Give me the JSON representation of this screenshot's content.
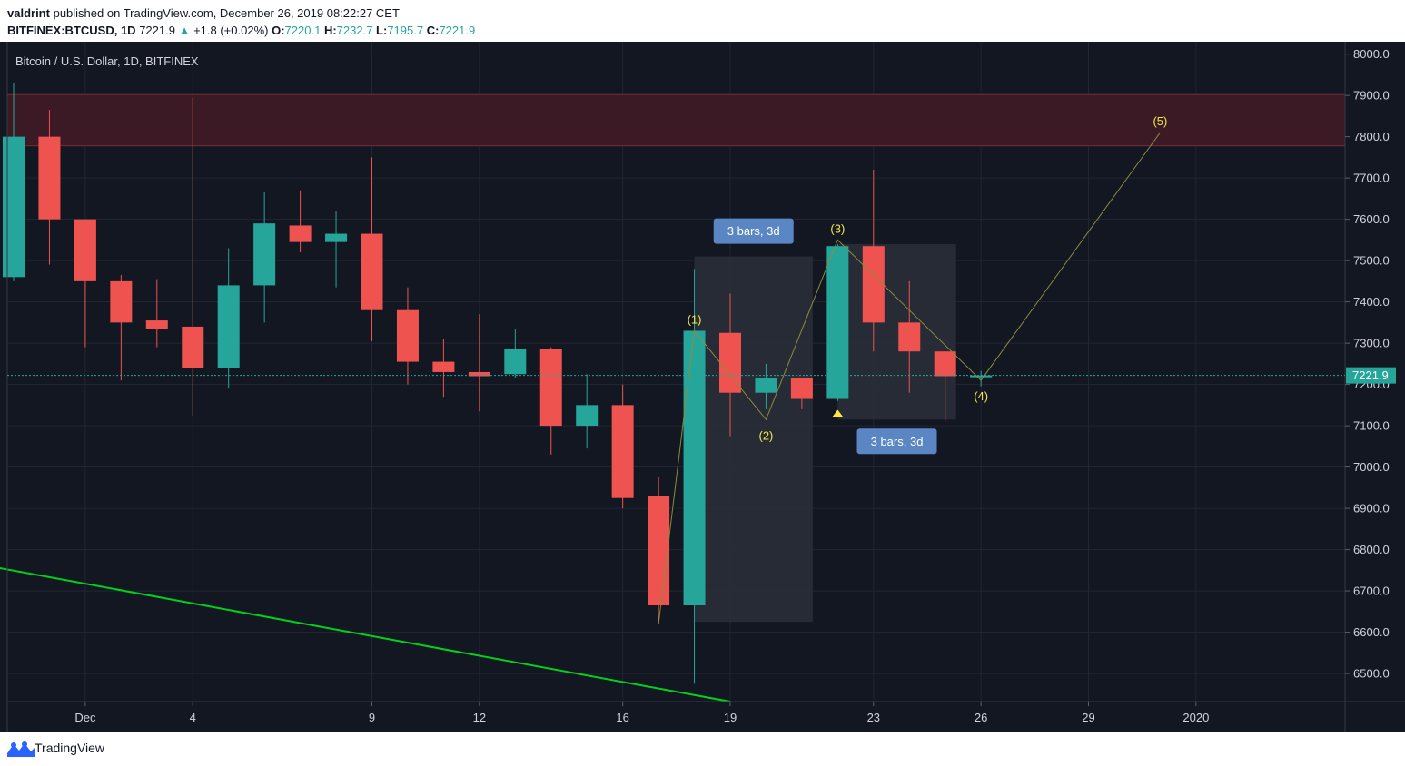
{
  "header": {
    "author": "valdrint",
    "published": "published on TradingView.com, December 26, 2019 08:22:27 CET",
    "symbol": "BITFINEX:BTCUSD, 1D",
    "last": "7221.9",
    "up_arrow": "▲",
    "change": "+1.8 (+0.02%)",
    "o_label": "O:",
    "o": "7220.1",
    "h_label": "H:",
    "h": "7232.7",
    "l_label": "L:",
    "l": "7195.7",
    "c_label": "C:",
    "c": "7221.9"
  },
  "legend_title": "Bitcoin / U.S. Dollar, 1D, BITFINEX",
  "footer": {
    "brand": "TradingView",
    "logo_icon": "tradingview-logo-icon"
  },
  "colors": {
    "up": "#26a69a",
    "down": "#ef5350",
    "zone": "#3b1a26",
    "trendline": "#00d11b",
    "wave": "#8c8c3c",
    "wave_label": "#f2e84a",
    "badge": "#5b86c4",
    "price_tag": "#26a69a",
    "background": "#131722",
    "grid": "#222633"
  },
  "chart_data": {
    "type": "candlestick",
    "x_tick_labels": [
      "Dec",
      "4",
      "9",
      "12",
      "16",
      "19",
      "23",
      "26",
      "29",
      "2020"
    ],
    "x_tick_days": [
      "2019-12-01",
      "2019-12-04",
      "2019-12-09",
      "2019-12-12",
      "2019-12-16",
      "2019-12-19",
      "2019-12-23",
      "2019-12-26",
      "2019-12-29",
      "2020-01-01"
    ],
    "y_ticks": [
      "6500.0",
      "6600.0",
      "6700.0",
      "6800.0",
      "6900.0",
      "7000.0",
      "7100.0",
      "7200.0",
      "7300.0",
      "7400.0",
      "7500.0",
      "7600.0",
      "7700.0",
      "7800.0",
      "7900.0",
      "8000.0"
    ],
    "ylim": [
      6432,
      8030
    ],
    "last_price": "7221.9",
    "candles": [
      {
        "date": "2019-11-29",
        "o": 7460,
        "h": 7930,
        "l": 7450,
        "c": 7800
      },
      {
        "date": "2019-11-30",
        "o": 7800,
        "h": 7865,
        "l": 7490,
        "c": 7600
      },
      {
        "date": "2019-12-01",
        "o": 7600,
        "h": 7600,
        "l": 7290,
        "c": 7450
      },
      {
        "date": "2019-12-02",
        "o": 7450,
        "h": 7465,
        "l": 7210,
        "c": 7350
      },
      {
        "date": "2019-12-03",
        "o": 7355,
        "h": 7455,
        "l": 7290,
        "c": 7335
      },
      {
        "date": "2019-12-04",
        "o": 7340,
        "h": 7895,
        "l": 7125,
        "c": 7240
      },
      {
        "date": "2019-12-05",
        "o": 7240,
        "h": 7530,
        "l": 7190,
        "c": 7440
      },
      {
        "date": "2019-12-06",
        "o": 7440,
        "h": 7665,
        "l": 7350,
        "c": 7590
      },
      {
        "date": "2019-12-07",
        "o": 7585,
        "h": 7670,
        "l": 7520,
        "c": 7545
      },
      {
        "date": "2019-12-08",
        "o": 7545,
        "h": 7620,
        "l": 7435,
        "c": 7565
      },
      {
        "date": "2019-12-09",
        "o": 7565,
        "h": 7750,
        "l": 7305,
        "c": 7380
      },
      {
        "date": "2019-12-10",
        "o": 7380,
        "h": 7435,
        "l": 7200,
        "c": 7255
      },
      {
        "date": "2019-12-11",
        "o": 7255,
        "h": 7310,
        "l": 7170,
        "c": 7230
      },
      {
        "date": "2019-12-12",
        "o": 7230,
        "h": 7370,
        "l": 7135,
        "c": 7220
      },
      {
        "date": "2019-12-13",
        "o": 7225,
        "h": 7335,
        "l": 7215,
        "c": 7285
      },
      {
        "date": "2019-12-14",
        "o": 7285,
        "h": 7290,
        "l": 7030,
        "c": 7100
      },
      {
        "date": "2019-12-15",
        "o": 7100,
        "h": 7225,
        "l": 7045,
        "c": 7150
      },
      {
        "date": "2019-12-16",
        "o": 7150,
        "h": 7200,
        "l": 6900,
        "c": 6925
      },
      {
        "date": "2019-12-17",
        "o": 6930,
        "h": 6975,
        "l": 6620,
        "c": 6665
      },
      {
        "date": "2019-12-18",
        "o": 6665,
        "h": 7480,
        "l": 6475,
        "c": 7330
      },
      {
        "date": "2019-12-19",
        "o": 7325,
        "h": 7420,
        "l": 7075,
        "c": 7180
      },
      {
        "date": "2019-12-20",
        "o": 7180,
        "h": 7250,
        "l": 7140,
        "c": 7215
      },
      {
        "date": "2019-12-21",
        "o": 7215,
        "h": 7215,
        "l": 7140,
        "c": 7165
      },
      {
        "date": "2019-12-22",
        "o": 7165,
        "h": 7540,
        "l": 7160,
        "c": 7535
      },
      {
        "date": "2019-12-23",
        "o": 7535,
        "h": 7720,
        "l": 7280,
        "c": 7350
      },
      {
        "date": "2019-12-24",
        "o": 7350,
        "h": 7450,
        "l": 7180,
        "c": 7280
      },
      {
        "date": "2019-12-25",
        "o": 7280,
        "h": 7280,
        "l": 7110,
        "c": 7220
      },
      {
        "date": "2019-12-26",
        "o": 7220.1,
        "h": 7232.7,
        "l": 7195.7,
        "c": 7221.9
      }
    ],
    "resistance_zone": [
      7778,
      7902
    ],
    "trendline": [
      {
        "date": "2019-11-28",
        "price": 6765
      },
      {
        "date": "2019-12-19",
        "price": 6432
      }
    ],
    "elliott_wave": [
      {
        "label": "",
        "date": "2019-12-17",
        "price": 6620
      },
      {
        "label": "(1)",
        "date": "2019-12-18",
        "price": 7330
      },
      {
        "label": "(2)",
        "date": "2019-12-20",
        "price": 7115
      },
      {
        "label": "(3)",
        "date": "2019-12-22",
        "price": 7550
      },
      {
        "label": "(4)",
        "date": "2019-12-26",
        "price": 7210
      },
      {
        "label": "(5)",
        "date": "2019-12-31",
        "price": 7810
      }
    ],
    "range_boxes": [
      {
        "label": "3 bars, 3d",
        "from": "2019-12-18",
        "to": "2019-12-21",
        "top": 7510,
        "bottom": 6625,
        "badge": "above"
      },
      {
        "label": "3 bars, 3d",
        "from": "2019-12-22",
        "to": "2019-12-25",
        "top": 7540,
        "bottom": 7115,
        "badge": "below"
      }
    ],
    "markers": [
      {
        "type": "triangle-up",
        "date": "2019-12-22",
        "price": 7130
      }
    ]
  }
}
